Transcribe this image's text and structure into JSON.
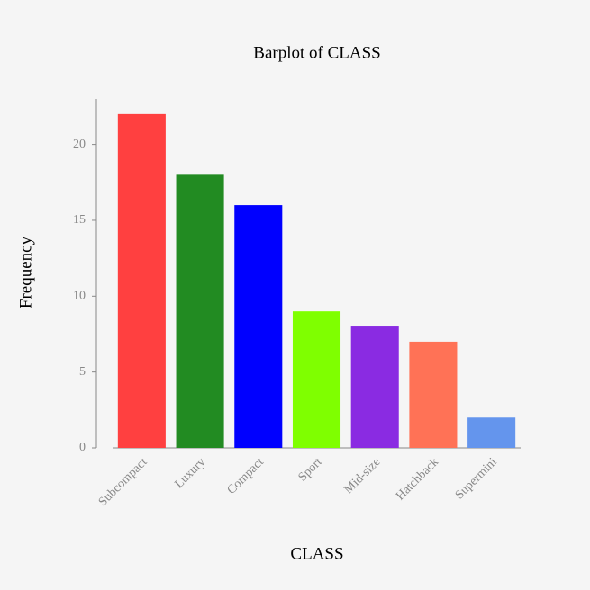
{
  "chart_data": {
    "type": "bar",
    "title": "Barplot of CLASS",
    "xlabel": "CLASS",
    "ylabel": "Frequency",
    "categories": [
      "Subcompact",
      "Luxury",
      "Compact",
      "Sport",
      "Mid-size",
      "Hatchback",
      "Supermini"
    ],
    "values": [
      22,
      18,
      16,
      9,
      8,
      7,
      2
    ],
    "colors": [
      "#ff4040",
      "#228b22",
      "#0000ff",
      "#7fff00",
      "#8a2be2",
      "#ff7256",
      "#6495ed"
    ],
    "ylim": [
      0,
      23
    ],
    "yticks": [
      0,
      5,
      10,
      15,
      20
    ],
    "grid": false
  }
}
